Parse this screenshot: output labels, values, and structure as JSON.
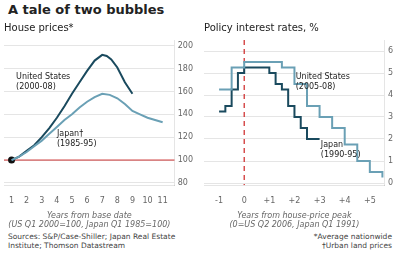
{
  "title": "A tale of two bubbles",
  "annotations": [
    "Sources: S&P/Case-Shiller; Japan Real Estate\nInstitute; Thomson Datastream",
    "*Average nationwide\n†Urban land prices"
  ],
  "chart_data": [
    {
      "type": "line",
      "title": "House prices*",
      "x_label": [
        "Years from base date",
        "(US Q1 2000=100, Japan Q1 1985=100)"
      ],
      "xlim": [
        0.5,
        11.8
      ],
      "xticks": [
        1,
        2,
        3,
        4,
        5,
        6,
        7,
        8,
        9,
        10,
        11
      ],
      "ylim": [
        78,
        205
      ],
      "yticks": [
        80,
        100,
        120,
        140,
        160,
        180,
        200
      ],
      "grid": "y",
      "hline": {
        "y": 100,
        "color": "#cc3333"
      },
      "series": [
        {
          "color": "#6aa0b5",
          "x": [
            1.0,
            1.5,
            2.0,
            2.5,
            3.0,
            3.5,
            4.0,
            4.5,
            5.0,
            5.5,
            6.0,
            6.5,
            7.0,
            7.5,
            8.0,
            8.5,
            9.0,
            9.5,
            10.0,
            10.5,
            11.0
          ],
          "values": [
            100,
            103,
            107,
            112,
            117,
            123,
            129,
            135,
            140,
            146,
            151,
            155,
            158,
            157,
            154,
            149,
            143,
            140,
            137,
            135,
            133
          ]
        },
        {
          "color": "#1a4a5e",
          "x": [
            1.0,
            1.5,
            2.0,
            2.5,
            3.0,
            3.5,
            4.0,
            4.5,
            5.0,
            5.5,
            6.0,
            6.5,
            7.0,
            7.3,
            7.6,
            8.0,
            8.5,
            9.0
          ],
          "values": [
            100,
            103,
            108,
            113,
            120,
            128,
            137,
            147,
            158,
            168,
            178,
            187,
            192,
            191,
            188,
            181,
            168,
            158
          ]
        },
        {
          "type": "scatter",
          "marker": "circle",
          "color": "#111111",
          "x": [
            1
          ],
          "values": [
            100
          ]
        }
      ],
      "annotations": [
        {
          "text": "United States\n(2000-08)",
          "x": 1.3,
          "y": 176
        },
        {
          "text": "Japan†\n(1985-95)",
          "x": 4.0,
          "y": 126
        }
      ]
    },
    {
      "type": "step",
      "title": "Policy interest rates, %",
      "x_label": [
        "Years from house-price peak",
        "(0=US Q2 2006, Japan Q1 1991)"
      ],
      "xlim": [
        -1.6,
        5.6
      ],
      "xticks": [
        -1,
        0,
        {
          "value": 1,
          "label": "+1"
        },
        {
          "value": 2,
          "label": "+2"
        },
        {
          "value": 3,
          "label": "+3"
        },
        {
          "value": 4,
          "label": "+4"
        },
        {
          "value": 5,
          "label": "+5"
        }
      ],
      "ylim": [
        -0.1,
        6.5
      ],
      "yticks": [
        0,
        1,
        2,
        3,
        4,
        5,
        6
      ],
      "grid": "y",
      "vline": {
        "x": 0,
        "color": "#cc2222"
      },
      "series": [
        {
          "color": "#6aa0b5",
          "x": [
            -1.0,
            -0.5,
            0.0,
            0.5,
            1.0,
            1.5,
            2.0,
            2.5,
            3.0,
            3.5,
            4.0,
            4.5,
            5.0,
            5.5
          ],
          "values": [
            4.25,
            5.25,
            5.5,
            5.5,
            5.5,
            5.25,
            4.5,
            3.5,
            3.0,
            2.5,
            1.75,
            1.0,
            0.5,
            0.25
          ]
        },
        {
          "color": "#1a4a5e",
          "x": [
            -1.0,
            -0.75,
            -0.5,
            -0.25,
            0.0,
            0.25,
            0.5,
            0.75,
            1.0,
            1.25,
            1.5,
            1.75,
            2.0,
            2.25,
            2.5,
            2.75,
            3.0
          ],
          "values": [
            3.25,
            3.5,
            4.25,
            5.0,
            5.25,
            5.25,
            5.25,
            5.25,
            5.0,
            4.5,
            4.25,
            3.5,
            3.0,
            2.5,
            2.0,
            2.0,
            2.0
          ]
        }
      ],
      "annotations": [
        {
          "text": "United States\n(2005-08)",
          "x": 2.05,
          "y": 5.0
        },
        {
          "text": "Japan\n(1990-95)",
          "x": 3.05,
          "y": 1.9
        }
      ]
    }
  ]
}
